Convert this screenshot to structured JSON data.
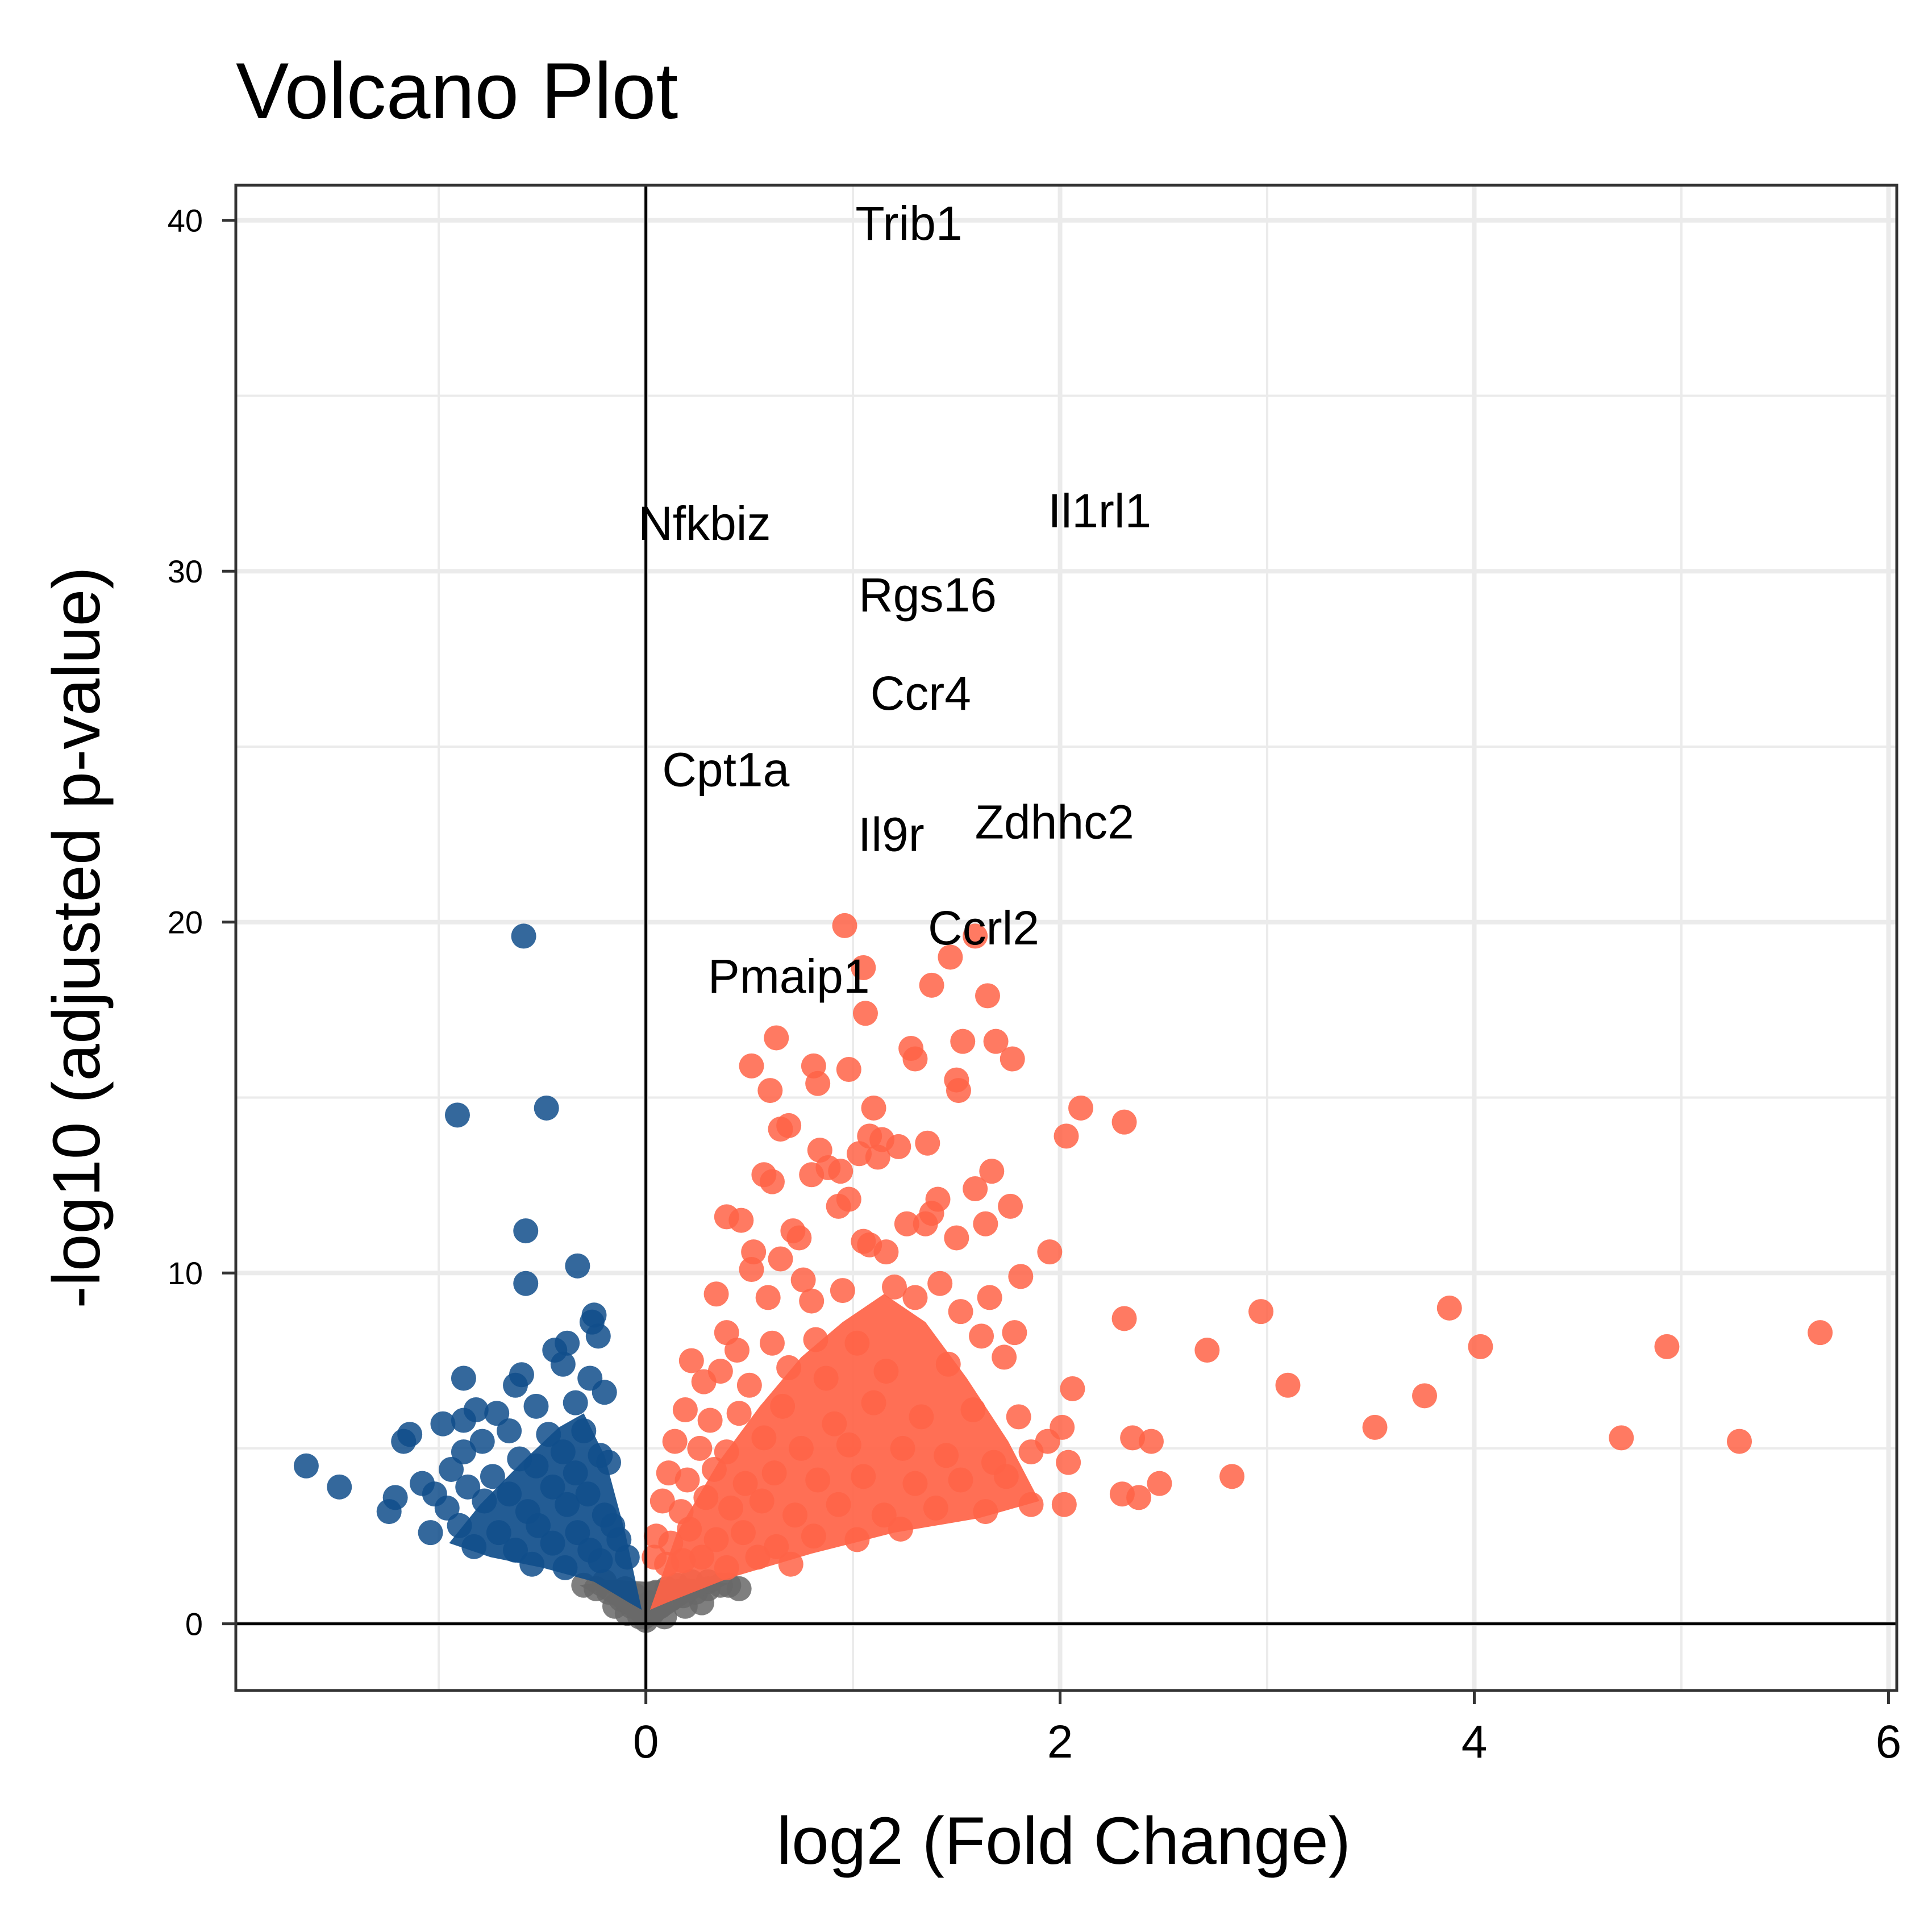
{
  "chart_data": {
    "type": "scatter",
    "title": "Volcano Plot",
    "xlabel": "log2 (Fold Change)",
    "ylabel": "-log10 (adjusted p-value)",
    "xlim": [
      -1.98,
      6.04
    ],
    "ylim": [
      -1.9,
      41.0
    ],
    "x_ticks": [
      "0",
      "2",
      "4",
      "6"
    ],
    "y_ticks": [
      "0",
      "10",
      "20",
      "30",
      "40"
    ],
    "grid": true,
    "legend": "none",
    "colors": {
      "up": "#FF6347",
      "down": "#104E8B",
      "ns": "#696969",
      "grid": "#EBEBEB",
      "panel_border": "#333333",
      "zero_lines": "#000000"
    },
    "labeled_genes": [
      {
        "name": "Trib1",
        "x": 0.88,
        "y": 38.8
      },
      {
        "name": "Il1rl1",
        "x": 2.01,
        "y": 30.2
      },
      {
        "name": "Nfkbiz",
        "x": 0.53,
        "y": 30.0
      },
      {
        "name": "Rgs16",
        "x": 1.1,
        "y": 27.8
      },
      {
        "name": "Ccr4",
        "x": 1.08,
        "y": 25.0
      },
      {
        "name": "Zdhhc2",
        "x": 1.52,
        "y": 21.9
      },
      {
        "name": "Il9r",
        "x": 1.02,
        "y": 21.3
      },
      {
        "name": "Cpt1a",
        "x": 0.77,
        "y": 23.6
      },
      {
        "name": "Ccrl2",
        "x": 1.96,
        "y": 19.4
      },
      {
        "name": "Pmaip1",
        "x": 0.8,
        "y": 19.2
      }
    ],
    "series": [
      {
        "group": "up",
        "points": [
          [
            0.96,
            19.9
          ],
          [
            1.47,
            19.0
          ],
          [
            1.59,
            19.6
          ],
          [
            1.05,
            18.7
          ],
          [
            1.38,
            18.2
          ],
          [
            1.65,
            17.9
          ],
          [
            1.06,
            17.4
          ],
          [
            0.63,
            16.7
          ],
          [
            1.28,
            16.4
          ],
          [
            1.3,
            16.1
          ],
          [
            1.53,
            16.6
          ],
          [
            1.69,
            16.6
          ],
          [
            1.77,
            16.1
          ],
          [
            0.51,
            15.9
          ],
          [
            0.81,
            15.9
          ],
          [
            0.98,
            15.8
          ],
          [
            1.5,
            15.5
          ],
          [
            1.51,
            15.2
          ],
          [
            0.83,
            15.4
          ],
          [
            0.6,
            15.2
          ],
          [
            2.1,
            14.7
          ],
          [
            2.31,
            14.3
          ],
          [
            2.03,
            13.9
          ],
          [
            1.1,
            14.7
          ],
          [
            0.69,
            14.2
          ],
          [
            0.65,
            14.1
          ],
          [
            1.08,
            13.9
          ],
          [
            1.14,
            13.8
          ],
          [
            1.22,
            13.6
          ],
          [
            1.36,
            13.7
          ],
          [
            0.84,
            13.5
          ],
          [
            1.03,
            13.4
          ],
          [
            1.12,
            13.3
          ],
          [
            0.57,
            12.8
          ],
          [
            0.61,
            12.6
          ],
          [
            0.8,
            12.8
          ],
          [
            0.88,
            13.0
          ],
          [
            0.94,
            12.9
          ],
          [
            1.67,
            12.9
          ],
          [
            1.59,
            12.4
          ],
          [
            0.98,
            12.1
          ],
          [
            0.93,
            11.9
          ],
          [
            1.41,
            12.1
          ],
          [
            1.76,
            11.9
          ],
          [
            1.38,
            11.7
          ],
          [
            0.39,
            11.6
          ],
          [
            0.46,
            11.5
          ],
          [
            0.71,
            11.2
          ],
          [
            1.26,
            11.4
          ],
          [
            1.35,
            11.4
          ],
          [
            1.64,
            11.4
          ],
          [
            0.74,
            11.0
          ],
          [
            1.05,
            10.9
          ],
          [
            1.5,
            11.0
          ],
          [
            1.08,
            10.8
          ],
          [
            0.52,
            10.6
          ],
          [
            1.95,
            10.6
          ],
          [
            0.65,
            10.4
          ],
          [
            1.16,
            10.6
          ],
          [
            0.51,
            10.1
          ],
          [
            1.81,
            9.9
          ],
          [
            0.76,
            9.8
          ],
          [
            0.34,
            9.4
          ],
          [
            0.59,
            9.3
          ],
          [
            1.66,
            9.3
          ],
          [
            1.42,
            9.7
          ],
          [
            0.95,
            9.5
          ],
          [
            1.2,
            9.6
          ],
          [
            0.8,
            9.2
          ],
          [
            1.3,
            9.3
          ],
          [
            1.52,
            8.9
          ],
          [
            0.39,
            8.3
          ],
          [
            0.61,
            8.0
          ],
          [
            0.44,
            7.8
          ],
          [
            0.82,
            8.1
          ],
          [
            1.02,
            8.0
          ],
          [
            1.78,
            8.3
          ],
          [
            1.62,
            8.2
          ],
          [
            0.22,
            7.5
          ],
          [
            0.36,
            7.2
          ],
          [
            0.28,
            6.9
          ],
          [
            0.5,
            6.8
          ],
          [
            0.69,
            7.3
          ],
          [
            0.87,
            7.0
          ],
          [
            1.16,
            7.2
          ],
          [
            1.46,
            7.4
          ],
          [
            1.73,
            7.6
          ],
          [
            2.06,
            6.7
          ],
          [
            1.8,
            5.9
          ],
          [
            1.94,
            5.2
          ],
          [
            2.01,
            5.6
          ],
          [
            0.19,
            6.1
          ],
          [
            0.31,
            5.8
          ],
          [
            0.45,
            6.0
          ],
          [
            0.66,
            6.2
          ],
          [
            0.91,
            5.7
          ],
          [
            1.1,
            6.3
          ],
          [
            1.33,
            5.9
          ],
          [
            1.58,
            6.1
          ],
          [
            0.14,
            5.2
          ],
          [
            0.26,
            5.0
          ],
          [
            0.39,
            4.9
          ],
          [
            0.57,
            5.3
          ],
          [
            0.75,
            5.0
          ],
          [
            0.98,
            5.1
          ],
          [
            1.24,
            5.0
          ],
          [
            1.45,
            4.8
          ],
          [
            1.68,
            4.6
          ],
          [
            1.86,
            4.9
          ],
          [
            2.04,
            4.6
          ],
          [
            0.11,
            4.3
          ],
          [
            0.2,
            4.1
          ],
          [
            0.33,
            4.4
          ],
          [
            0.48,
            4.0
          ],
          [
            0.62,
            4.3
          ],
          [
            0.83,
            4.1
          ],
          [
            1.05,
            4.2
          ],
          [
            1.3,
            4.0
          ],
          [
            1.52,
            4.1
          ],
          [
            1.74,
            4.2
          ],
          [
            0.08,
            3.5
          ],
          [
            0.17,
            3.2
          ],
          [
            0.29,
            3.6
          ],
          [
            0.41,
            3.3
          ],
          [
            0.56,
            3.5
          ],
          [
            0.72,
            3.1
          ],
          [
            0.93,
            3.4
          ],
          [
            1.15,
            3.1
          ],
          [
            1.4,
            3.3
          ],
          [
            1.64,
            3.2
          ],
          [
            1.86,
            3.4
          ],
          [
            2.02,
            3.4
          ],
          [
            0.05,
            2.5
          ],
          [
            0.12,
            2.3
          ],
          [
            0.21,
            2.7
          ],
          [
            0.34,
            2.4
          ],
          [
            0.47,
            2.6
          ],
          [
            0.63,
            2.2
          ],
          [
            0.81,
            2.5
          ],
          [
            1.02,
            2.4
          ],
          [
            1.23,
            2.7
          ],
          [
            0.04,
            1.9
          ],
          [
            0.1,
            1.7
          ],
          [
            0.18,
            1.8
          ],
          [
            0.27,
            1.9
          ],
          [
            0.39,
            1.6
          ],
          [
            0.54,
            1.9
          ],
          [
            0.7,
            1.7
          ],
          [
            2.3,
            3.7
          ],
          [
            2.38,
            3.6
          ],
          [
            2.48,
            4.0
          ],
          [
            2.35,
            5.3
          ],
          [
            2.44,
            5.2
          ],
          [
            2.71,
            7.8
          ],
          [
            2.83,
            4.2
          ],
          [
            2.97,
            8.9
          ],
          [
            3.1,
            6.8
          ],
          [
            3.52,
            5.6
          ],
          [
            3.76,
            6.5
          ],
          [
            3.88,
            9.0
          ],
          [
            4.03,
            7.9
          ],
          [
            4.71,
            5.3
          ],
          [
            4.93,
            7.9
          ],
          [
            5.28,
            5.2
          ],
          [
            5.67,
            8.3
          ],
          [
            2.31,
            8.7
          ]
        ]
      },
      {
        "group": "down",
        "points": [
          [
            -0.59,
            19.6
          ],
          [
            -0.91,
            14.5
          ],
          [
            -0.48,
            14.7
          ],
          [
            -0.58,
            11.2
          ],
          [
            -0.33,
            10.2
          ],
          [
            -0.58,
            9.7
          ],
          [
            -0.25,
            8.8
          ],
          [
            -0.26,
            8.6
          ],
          [
            -0.23,
            8.2
          ],
          [
            -0.38,
            8.0
          ],
          [
            -0.44,
            7.8
          ],
          [
            -0.4,
            7.4
          ],
          [
            -0.6,
            7.1
          ],
          [
            -0.88,
            7.0
          ],
          [
            -0.27,
            7.0
          ],
          [
            -0.63,
            6.8
          ],
          [
            -0.2,
            6.6
          ],
          [
            -0.82,
            6.1
          ],
          [
            -0.72,
            6.0
          ],
          [
            -0.53,
            6.2
          ],
          [
            -0.34,
            6.3
          ],
          [
            -0.88,
            5.8
          ],
          [
            -0.98,
            5.7
          ],
          [
            -0.66,
            5.5
          ],
          [
            -1.14,
            5.4
          ],
          [
            -1.17,
            5.2
          ],
          [
            -0.79,
            5.2
          ],
          [
            -0.47,
            5.4
          ],
          [
            -0.3,
            5.5
          ],
          [
            -0.88,
            4.9
          ],
          [
            -0.61,
            4.7
          ],
          [
            -0.4,
            4.9
          ],
          [
            -0.22,
            4.8
          ],
          [
            -1.64,
            4.5
          ],
          [
            -0.94,
            4.4
          ],
          [
            -0.74,
            4.2
          ],
          [
            -0.53,
            4.5
          ],
          [
            -0.34,
            4.3
          ],
          [
            -0.18,
            4.6
          ],
          [
            -1.08,
            4.0
          ],
          [
            -1.02,
            3.7
          ],
          [
            -0.86,
            3.9
          ],
          [
            -0.66,
            3.7
          ],
          [
            -0.45,
            3.9
          ],
          [
            -0.28,
            3.7
          ],
          [
            -1.21,
            3.6
          ],
          [
            -1.24,
            3.2
          ],
          [
            -0.96,
            3.3
          ],
          [
            -0.78,
            3.5
          ],
          [
            -0.57,
            3.2
          ],
          [
            -0.38,
            3.4
          ],
          [
            -0.2,
            3.1
          ],
          [
            -1.04,
            2.6
          ],
          [
            -0.9,
            2.8
          ],
          [
            -0.71,
            2.6
          ],
          [
            -0.52,
            2.8
          ],
          [
            -0.33,
            2.6
          ],
          [
            -0.16,
            2.8
          ],
          [
            -0.83,
            2.2
          ],
          [
            -0.63,
            2.1
          ],
          [
            -0.45,
            2.3
          ],
          [
            -0.27,
            2.1
          ],
          [
            -0.13,
            2.4
          ],
          [
            -0.55,
            1.7
          ],
          [
            -0.39,
            1.6
          ],
          [
            -0.22,
            1.8
          ],
          [
            -0.09,
            1.9
          ],
          [
            -1.48,
            3.9
          ]
        ]
      },
      {
        "group": "ns",
        "points": [
          [
            -0.3,
            1.1
          ],
          [
            -0.24,
            1.0
          ],
          [
            -0.18,
            0.9
          ],
          [
            -0.12,
            0.7
          ],
          [
            -0.07,
            0.5
          ],
          [
            -0.03,
            0.2
          ],
          [
            0.0,
            0.1
          ],
          [
            0.03,
            0.3
          ],
          [
            0.07,
            0.5
          ],
          [
            0.12,
            0.7
          ],
          [
            0.18,
            0.8
          ],
          [
            0.24,
            0.9
          ],
          [
            0.3,
            1.0
          ],
          [
            0.36,
            1.1
          ],
          [
            0.22,
            1.2
          ],
          [
            0.3,
            1.2
          ],
          [
            0.15,
            1.1
          ],
          [
            -0.2,
            1.2
          ],
          [
            -0.1,
            1.0
          ],
          [
            0.05,
            0.9
          ],
          [
            0.1,
            1.0
          ],
          [
            -0.05,
            0.8
          ],
          [
            0.4,
            1.1
          ],
          [
            0.45,
            1.0
          ],
          [
            0.19,
            0.5
          ],
          [
            -0.15,
            0.5
          ],
          [
            0.09,
            0.2
          ],
          [
            -0.09,
            0.3
          ],
          [
            0.02,
            0.6
          ],
          [
            0.27,
            0.6
          ]
        ]
      }
    ]
  }
}
